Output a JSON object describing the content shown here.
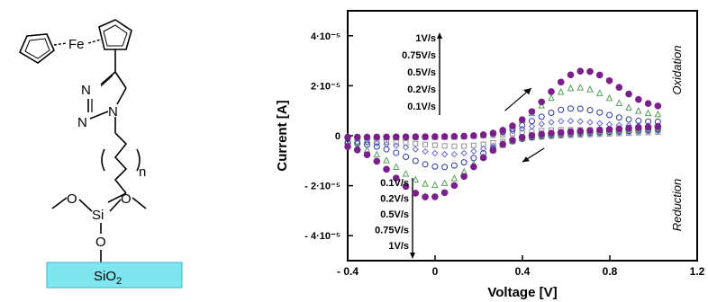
{
  "molecule": {
    "atoms": {
      "fe": "Fe",
      "n1": "N",
      "n2": "N",
      "n3": "N",
      "n_subscript": "n",
      "o_left": "O",
      "si": "Si",
      "o_right": "O",
      "o_bottom": "O"
    },
    "substrate": {
      "label": "SiO",
      "subscript": "2",
      "color": "#7fe5ef"
    }
  },
  "chart_data": {
    "type": "scatter",
    "title": "",
    "xlabel": "Voltage [V]",
    "ylabel": "Current [A]",
    "xlim": [
      -0.4,
      1.2
    ],
    "ylim": [
      -5e-05,
      5e-05
    ],
    "xticks": [
      {
        "value": -0.4,
        "label": "- 0.4"
      },
      {
        "value": 0,
        "label": "0"
      },
      {
        "value": 0.4,
        "label": "0.4"
      },
      {
        "value": 0.8,
        "label": "0.8"
      },
      {
        "value": 1.2,
        "label": "1.2"
      }
    ],
    "yticks": [
      {
        "value": 4e-05,
        "label": "4·10⁻⁵"
      },
      {
        "value": 2e-05,
        "label": "2·10⁻⁵"
      },
      {
        "value": 0,
        "label": "0"
      },
      {
        "value": -2e-05,
        "label": "- 2·10⁻⁵"
      },
      {
        "value": -4e-05,
        "label": "- 4·10⁻⁵"
      }
    ],
    "oxidation_label": "Oxidation",
    "reduction_label": "Reduction",
    "oxidation_rates": [
      "1V/s",
      "0.75V/s",
      "0.5V/s",
      "0.2V/s",
      "0.1V/s"
    ],
    "reduction_rates": [
      "0.1V/s",
      "0.2V/s",
      "0.5V/s",
      "0.75V/s",
      "1V/s"
    ],
    "series": [
      {
        "name": "1V/s",
        "color": "#7a1f8c",
        "marker": "filled-circle",
        "ox_peak": [
          0.68,
          2.6e-05
        ],
        "red_peak": [
          -0.02,
          -2.3e-05
        ],
        "end_ox": 1.2e-05,
        "end_red": 3e-06
      },
      {
        "name": "0.75V/s",
        "color": "#5aa05a",
        "marker": "triangle",
        "ox_peak": [
          0.65,
          1.95e-05
        ],
        "red_peak": [
          0.0,
          -1.8e-05
        ],
        "end_ox": 9e-06,
        "end_red": 2.5e-06
      },
      {
        "name": "0.5V/s",
        "color": "#2a3aa0",
        "marker": "circle",
        "ox_peak": [
          0.63,
          1.1e-05
        ],
        "red_peak": [
          0.04,
          -1.1e-05
        ],
        "end_ox": 6e-06,
        "end_red": 2e-06
      },
      {
        "name": "0.2V/s",
        "color": "#6a6ad0",
        "marker": "diamond",
        "ox_peak": [
          0.6,
          6e-06
        ],
        "red_peak": [
          0.08,
          -6e-06
        ],
        "end_ox": 4.5e-06,
        "end_red": 1.5e-06
      },
      {
        "name": "0.1V/s",
        "color": "#909090",
        "marker": "square",
        "ox_peak": [
          0.58,
          2.5e-06
        ],
        "red_peak": [
          0.12,
          -2.8e-06
        ],
        "end_ox": 3e-06,
        "end_red": 1e-06
      }
    ]
  }
}
